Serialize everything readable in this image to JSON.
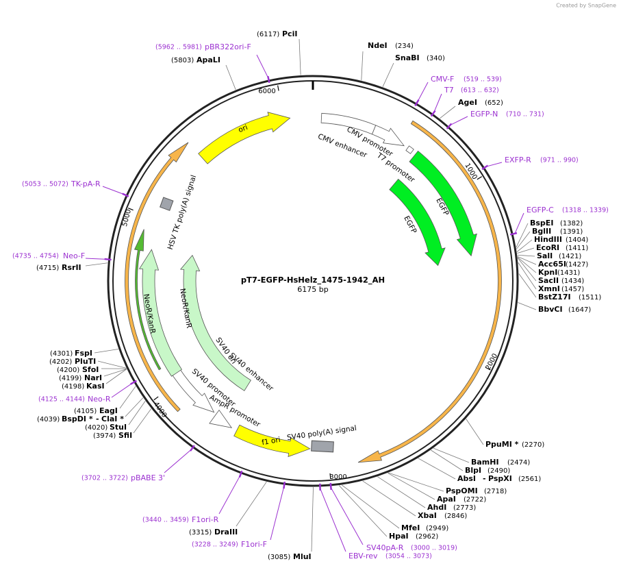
{
  "header": {
    "credit": "Created by SnapGene"
  },
  "plasmid": {
    "name": "pT7-EGFP-HsHelz_1475-1942_AH",
    "length": "6175 bp"
  },
  "scale": {
    "ticks": [
      "1000",
      "2000",
      "3000",
      "4000",
      "5000",
      "6000"
    ]
  },
  "enzymes": [
    {
      "name": "PciI",
      "position": "(6117)"
    },
    {
      "name": "ApaLI",
      "position": "(5803)"
    },
    {
      "name": "NdeI",
      "position": "(234)"
    },
    {
      "name": "SnaBI",
      "position": "(340)"
    },
    {
      "name": "AgeI",
      "position": "(652)"
    },
    {
      "name": "BspEI",
      "position": "(1382)"
    },
    {
      "name": "BglII",
      "position": "(1391)"
    },
    {
      "name": "HindIII",
      "position": "(1404)"
    },
    {
      "name": "EcoRI",
      "position": "(1411)"
    },
    {
      "name": "SalI",
      "position": "(1421)"
    },
    {
      "name": "Acc65I",
      "position": "(1427)"
    },
    {
      "name": "KpnI",
      "position": "(1431)"
    },
    {
      "name": "SacII",
      "position": "(1434)"
    },
    {
      "name": "XmnI",
      "position": "(1457)"
    },
    {
      "name": "BstZ17I",
      "position": "(1511)"
    },
    {
      "name": "BbvCI",
      "position": "(1647)"
    },
    {
      "name": "PpuMI *",
      "position": "(2270)"
    },
    {
      "name": "BamHI",
      "position": "(2474)"
    },
    {
      "name": "BlpI",
      "position": "(2490)"
    },
    {
      "name": "AbsI",
      "separator": "-",
      "name2": "PspXI",
      "position": "(2561)"
    },
    {
      "name": "PspOMI",
      "position": "(2718)"
    },
    {
      "name": "ApaI",
      "position": "(2722)"
    },
    {
      "name": "AhdI",
      "position": "(2773)"
    },
    {
      "name": "XbaI",
      "position": "(2846)"
    },
    {
      "name": "MfeI",
      "position": "(2949)"
    },
    {
      "name": "HpaI",
      "position": "(2962)"
    },
    {
      "name": "MluI",
      "position": "(3085)"
    },
    {
      "name": "DraIII",
      "position": "(3315)"
    },
    {
      "name": "SfiI",
      "position": "(3974)"
    },
    {
      "name": "StuI",
      "position": "(4020)"
    },
    {
      "name": "BspDI *",
      "separator": "-",
      "name2": "ClaI *",
      "position": "(4039)"
    },
    {
      "name": "EagI",
      "position": "(4105)"
    },
    {
      "name": "KasI",
      "position": "(4198)"
    },
    {
      "name": "NarI",
      "position": "(4199)"
    },
    {
      "name": "SfoI",
      "position": "(4200)"
    },
    {
      "name": "PluTI",
      "position": "(4202)"
    },
    {
      "name": "FspI",
      "position": "(4301)"
    },
    {
      "name": "RsrII",
      "position": "(4715)"
    }
  ],
  "primers": [
    {
      "name": "pBR322ori-F",
      "range": "(5962 .. 5981)"
    },
    {
      "name": "CMV-F",
      "range": "(519 .. 539)"
    },
    {
      "name": "T7",
      "range": "(613 .. 632)"
    },
    {
      "name": "EGFP-N",
      "range": "(710 .. 731)"
    },
    {
      "name": "EXFP-R",
      "range": "(971 .. 990)"
    },
    {
      "name": "EGFP-C",
      "range": "(1318 .. 1339)"
    },
    {
      "name": "TK-pA-R",
      "range": "(5053 .. 5072)"
    },
    {
      "name": "Neo-F",
      "range": "(4735 .. 4754)"
    },
    {
      "name": "Neo-R",
      "range": "(4125 .. 4144)"
    },
    {
      "name": "pBABE 3'",
      "range": "(3702 .. 3722)"
    },
    {
      "name": "F1ori-R",
      "range": "(3440 .. 3459)"
    },
    {
      "name": "F1ori-F",
      "range": "(3228 .. 3249)"
    },
    {
      "name": "EBV-rev",
      "range": "(3054 .. 3073)"
    },
    {
      "name": "SV40pA-R",
      "range": "(3000 .. 3019)"
    }
  ],
  "features": [
    {
      "label": "ori"
    },
    {
      "label": "CMV enhancer"
    },
    {
      "label": "CMV promoter"
    },
    {
      "label": "T7 promoter"
    },
    {
      "label": "EGFP"
    },
    {
      "label": "EGFP"
    },
    {
      "label": "SV40 poly(A) signal"
    },
    {
      "label": "f1 ori"
    },
    {
      "label": "AmpR promoter"
    },
    {
      "label": "SV40 promoter"
    },
    {
      "label": "SV40 enhancer"
    },
    {
      "label": "SV40 ori"
    },
    {
      "label": "NeoR/KanR"
    },
    {
      "label": "NeoR/KanR"
    },
    {
      "label": "HSV TK poly(A) signal"
    }
  ]
}
